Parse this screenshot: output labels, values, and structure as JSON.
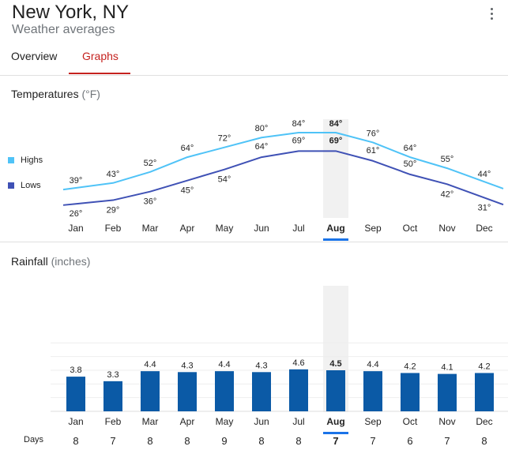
{
  "header": {
    "title": "New York, NY",
    "subtitle": "Weather averages"
  },
  "tabs": [
    {
      "label": "Overview"
    },
    {
      "label": "Graphs"
    }
  ],
  "selected_month": "Aug",
  "colors": {
    "highs": "#4fc3f7",
    "lows": "#3f51b5",
    "bars": "#0b5aa6",
    "accent": "#c5221f",
    "selection": "#1a73e8"
  },
  "temperatures": {
    "title": "Temperatures",
    "unit": "(°F)",
    "highs_label": "Highs",
    "lows_label": "Lows"
  },
  "rainfall": {
    "title": "Rainfall",
    "unit": "(inches)",
    "days_label": "Days"
  },
  "chart_data": [
    {
      "type": "line",
      "title": "Temperatures (°F)",
      "categories": [
        "Jan",
        "Feb",
        "Mar",
        "Apr",
        "May",
        "Jun",
        "Jul",
        "Aug",
        "Sep",
        "Oct",
        "Nov",
        "Dec"
      ],
      "series": [
        {
          "name": "Highs",
          "values": [
            39,
            43,
            52,
            64,
            72,
            80,
            84,
            84,
            76,
            64,
            55,
            44
          ]
        },
        {
          "name": "Lows",
          "values": [
            26,
            29,
            36,
            45,
            54,
            64,
            69,
            69,
            61,
            50,
            42,
            31
          ]
        }
      ],
      "value_labels": {
        "highs": [
          "39°",
          "43°",
          "52°",
          "64°",
          "72°",
          "80°",
          "84°",
          "84°",
          "76°",
          "64°",
          "55°",
          "44°"
        ],
        "lows": [
          "26°",
          "29°",
          "36°",
          "45°",
          "54°",
          "64°",
          "69°",
          "69°",
          "61°",
          "50°",
          "42°",
          "31°"
        ]
      },
      "legend": "left"
    },
    {
      "type": "bar",
      "title": "Rainfall (inches)",
      "categories": [
        "Jan",
        "Feb",
        "Mar",
        "Apr",
        "May",
        "Jun",
        "Jul",
        "Aug",
        "Sep",
        "Oct",
        "Nov",
        "Dec"
      ],
      "values": [
        3.8,
        3.3,
        4.4,
        4.3,
        4.4,
        4.3,
        4.6,
        4.5,
        4.4,
        4.2,
        4.1,
        4.2
      ],
      "value_labels": [
        "3.8",
        "3.3",
        "4.4",
        "4.3",
        "4.4",
        "4.3",
        "4.6",
        "4.5",
        "4.4",
        "4.2",
        "4.1",
        "4.2"
      ],
      "days": [
        "8",
        "7",
        "8",
        "8",
        "9",
        "8",
        "8",
        "7",
        "7",
        "6",
        "7",
        "8"
      ],
      "grid": true
    }
  ]
}
